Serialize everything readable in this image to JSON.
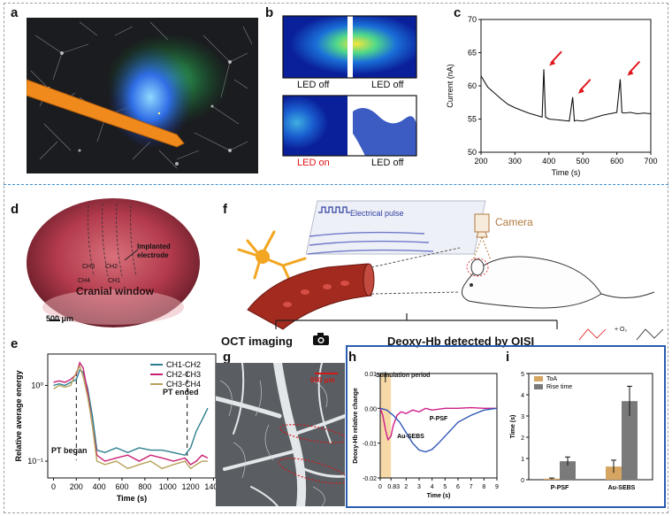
{
  "panels": {
    "a": "a",
    "b": "b",
    "c": "c",
    "d": "d",
    "e": "e",
    "f": "f",
    "g": "g",
    "h": "h",
    "i": "i"
  },
  "colors": {
    "frame": "#9aa0a6",
    "top_divider": "#3d8fd1",
    "panel_hi_border": "#2a5db0",
    "red_arrow": "#e0141a",
    "tan": "#d7a562",
    "gray_bar": "#7a7a7a",
    "vessel": "#a32a1f"
  },
  "panel_b": {
    "top_left": "LED off",
    "top_right": "LED off",
    "bottom_left": "LED on",
    "bottom_right": "LED off"
  },
  "panel_d": {
    "channels": [
      "CH3",
      "CH2",
      "CH4",
      "CH1"
    ],
    "electrode_label": "Implanted\nelectrode",
    "window_label": "Cranial window",
    "scale": "500 μm"
  },
  "panel_e": {
    "annotation_start": "PT began",
    "annotation_end": "PT ended"
  },
  "panel_f": {
    "pulse_label": "Electrical pulse",
    "camera_label": "Camera",
    "branch_left": "OCT imaging",
    "branch_right": "Deoxy-Hb detected by OISI",
    "reaction_label": "+ O₂"
  },
  "panel_g": {
    "scale": "500 μm"
  },
  "panel_h": {
    "annotation": "Stimulation  period"
  },
  "icons": [
    "camera-icon",
    "mouse-illustration",
    "neuron-illustration",
    "blood-vessel-illustration"
  ],
  "chart_data": [
    {
      "id": "c",
      "type": "line",
      "title": "",
      "xlabel": "Time (s)",
      "ylabel": "Current (nA)",
      "xlim": [
        200,
        700
      ],
      "ylim": [
        50,
        70
      ],
      "xticks": [
        200,
        300,
        400,
        500,
        600,
        700
      ],
      "yticks": [
        50,
        55,
        60,
        65,
        70
      ],
      "x": [
        200,
        220,
        240,
        260,
        280,
        300,
        320,
        340,
        360,
        380,
        385,
        390,
        400,
        420,
        440,
        460,
        470,
        475,
        480,
        500,
        520,
        540,
        560,
        580,
        600,
        610,
        615,
        620,
        640,
        660,
        680,
        700
      ],
      "y": [
        61.5,
        59.8,
        58.9,
        58.0,
        57.2,
        56.7,
        56.3,
        55.9,
        55.6,
        55.3,
        62.5,
        55.3,
        55.0,
        54.9,
        54.8,
        54.7,
        58.3,
        54.7,
        54.8,
        54.7,
        55.0,
        55.3,
        55.6,
        55.8,
        56.0,
        61.0,
        56.0,
        55.9,
        56.0,
        55.8,
        55.9,
        55.8
      ],
      "annotations": [
        "red arrows at spikes near 385 s, 470 s and 615 s"
      ]
    },
    {
      "id": "e",
      "type": "line",
      "xlabel": "Time (s)",
      "ylabel": "Relative average energy",
      "xticks": [
        0,
        200,
        400,
        600,
        800,
        1000,
        1200,
        1400
      ],
      "yticks": [
        "10⁻¹",
        "10⁰"
      ],
      "yscale": "log",
      "xlim": [
        -50,
        1420
      ],
      "ylim": [
        0.06,
        2.6
      ],
      "legend_position": "top-right",
      "series": [
        {
          "name": "CH1-CH2",
          "color": "#2b7e8f",
          "x": [
            0,
            50,
            100,
            150,
            200,
            230,
            260,
            300,
            340,
            380,
            450,
            550,
            650,
            750,
            850,
            950,
            1050,
            1150,
            1200,
            1250,
            1300,
            1350
          ],
          "y": [
            1.0,
            1.05,
            1.0,
            1.1,
            1.2,
            1.6,
            1.5,
            0.9,
            0.4,
            0.14,
            0.13,
            0.15,
            0.13,
            0.15,
            0.14,
            0.14,
            0.13,
            0.12,
            0.15,
            0.25,
            0.35,
            0.5
          ]
        },
        {
          "name": "CH2-CH3",
          "color": "#c81f72",
          "x": [
            0,
            50,
            100,
            150,
            200,
            230,
            260,
            300,
            340,
            380,
            450,
            550,
            650,
            750,
            850,
            950,
            1050,
            1150,
            1200,
            1250,
            1300,
            1350
          ],
          "y": [
            1.1,
            1.15,
            1.1,
            1.2,
            1.4,
            2.0,
            1.7,
            0.8,
            0.3,
            0.12,
            0.1,
            0.11,
            0.12,
            0.1,
            0.12,
            0.11,
            0.1,
            0.11,
            0.09,
            0.1,
            0.12,
            0.11
          ]
        },
        {
          "name": "CH3-CH4",
          "color": "#b8a25a",
          "x": [
            0,
            50,
            100,
            150,
            200,
            230,
            260,
            300,
            340,
            380,
            450,
            550,
            650,
            750,
            850,
            950,
            1050,
            1150,
            1200,
            1250,
            1300,
            1350
          ],
          "y": [
            0.9,
            1.0,
            0.95,
            1.0,
            1.5,
            1.8,
            1.3,
            0.7,
            0.3,
            0.1,
            0.09,
            0.1,
            0.08,
            0.09,
            0.1,
            0.08,
            0.09,
            0.1,
            0.08,
            0.09,
            0.1,
            0.1
          ]
        }
      ]
    },
    {
      "id": "h",
      "type": "line",
      "xlabel": "Time (s)",
      "ylabel": "Deoxy-Hb relative change",
      "xticks": [
        "0",
        "0.83",
        "2",
        "3",
        "4",
        "5",
        "6",
        "7",
        "8",
        "9"
      ],
      "yticks": [
        0.01,
        0.0,
        -0.01,
        -0.02
      ],
      "xlim": [
        0,
        9
      ],
      "ylim": [
        -0.02,
        0.01
      ],
      "series": [
        {
          "name": "P-PSF",
          "color": "#cc1f8a",
          "x": [
            0,
            0.2,
            0.4,
            0.6,
            0.83,
            1.0,
            1.3,
            1.6,
            2.0,
            2.5,
            3.0,
            3.5,
            4.0,
            5.0,
            6.0,
            7.0,
            8.0,
            9.0
          ],
          "y": [
            0.0,
            -0.002,
            -0.006,
            -0.009,
            -0.008,
            -0.005,
            -0.002,
            -0.001,
            -0.0015,
            -0.0005,
            -0.001,
            0.0,
            -0.0005,
            0.0,
            0.0,
            0.0002,
            0.0,
            0.0
          ]
        },
        {
          "name": "Au-SEBS",
          "color": "#2f57b7",
          "x": [
            0,
            0.5,
            1.0,
            1.5,
            2.0,
            2.5,
            3.0,
            3.5,
            4.0,
            4.5,
            5.0,
            5.5,
            6.0,
            7.0,
            8.0,
            9.0
          ],
          "y": [
            0.0,
            -0.0005,
            -0.002,
            -0.004,
            -0.007,
            -0.01,
            -0.012,
            -0.0125,
            -0.0118,
            -0.01,
            -0.008,
            -0.006,
            -0.004,
            -0.002,
            -0.0005,
            0.0
          ]
        }
      ],
      "shaded_region": [
        0,
        0.83
      ]
    },
    {
      "id": "i",
      "type": "bar",
      "ylabel": "Time (s)",
      "categories": [
        "P-PSF",
        "Au-SEBS"
      ],
      "ylim": [
        0,
        5
      ],
      "yticks": [
        0,
        1,
        2,
        3,
        4,
        5
      ],
      "legend_position": "top-left",
      "series": [
        {
          "name": "ToA",
          "color": "#d7a562",
          "values": [
            0.05,
            0.62
          ],
          "errors": [
            0.03,
            0.3
          ]
        },
        {
          "name": "Rise time",
          "color": "#7a7a7a",
          "values": [
            0.87,
            3.7
          ],
          "errors": [
            0.2,
            0.7
          ]
        }
      ]
    }
  ]
}
